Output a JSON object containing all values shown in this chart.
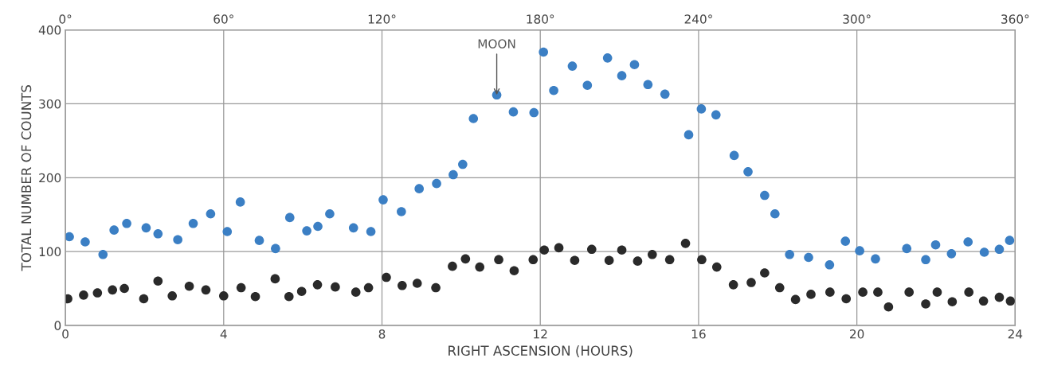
{
  "chart_data": {
    "type": "scatter",
    "xlabel": "RIGHT ASCENSION (HOURS)",
    "ylabel": "TOTAL NUMBER OF COUNTS",
    "xlim": [
      0,
      24
    ],
    "xticks": [
      0,
      4,
      8,
      12,
      16,
      20,
      24
    ],
    "x2lim": [
      0,
      360
    ],
    "x2ticks": [
      {
        "value": 0,
        "label": "0°"
      },
      {
        "value": 60,
        "label": "60°"
      },
      {
        "value": 120,
        "label": "120°"
      },
      {
        "value": 180,
        "label": "180°"
      },
      {
        "value": 240,
        "label": "240°"
      },
      {
        "value": 300,
        "label": "300°"
      },
      {
        "value": 360,
        "label": "360°"
      }
    ],
    "ylim": [
      0,
      400
    ],
    "yticks": [
      0,
      100,
      200,
      300,
      400
    ],
    "grid": true,
    "marker": "circle",
    "annotations": [
      {
        "text": "MOON",
        "x": 10.9,
        "y": 312
      }
    ],
    "series": [
      {
        "color": "#3b7fc4",
        "x": [
          0.1,
          0.5,
          0.95,
          1.23,
          1.55,
          2.04,
          2.34,
          2.84,
          3.23,
          3.67,
          4.09,
          4.42,
          4.9,
          5.31,
          5.67,
          6.1,
          6.38,
          6.68,
          7.28,
          7.72,
          8.03,
          8.49,
          8.94,
          9.38,
          9.8,
          10.04,
          10.31,
          10.9,
          11.32,
          11.84,
          12.08,
          12.34,
          12.81,
          13.19,
          13.7,
          14.06,
          14.38,
          14.72,
          15.15,
          15.75,
          16.07,
          16.44,
          16.9,
          17.25,
          17.67,
          17.93,
          18.3,
          18.78,
          19.31,
          19.71,
          20.07,
          20.47,
          21.26,
          21.74,
          21.99,
          22.39,
          22.81,
          23.22,
          23.6,
          23.86
        ],
        "values": [
          120,
          113,
          96,
          129,
          138,
          132,
          124,
          116,
          138,
          151,
          127,
          167,
          115,
          104,
          146,
          128,
          134,
          151,
          132,
          127,
          170,
          154,
          185,
          192,
          204,
          218,
          280,
          312,
          289,
          288,
          370,
          318,
          351,
          325,
          362,
          338,
          353,
          326,
          313,
          258,
          293,
          285,
          230,
          208,
          176,
          151,
          96,
          92,
          82,
          114,
          101,
          90,
          104,
          89,
          109,
          97,
          113,
          99,
          103,
          115
        ]
      },
      {
        "color": "#2a2a2a",
        "x": [
          0.06,
          0.46,
          0.81,
          1.19,
          1.49,
          1.98,
          2.34,
          2.7,
          3.13,
          3.55,
          4.0,
          4.44,
          4.8,
          5.3,
          5.65,
          5.97,
          6.37,
          6.82,
          7.34,
          7.66,
          8.11,
          8.51,
          8.89,
          9.36,
          9.78,
          10.11,
          10.47,
          10.95,
          11.34,
          11.82,
          12.1,
          12.47,
          12.87,
          13.3,
          13.74,
          14.06,
          14.46,
          14.83,
          15.27,
          15.67,
          16.08,
          16.46,
          16.88,
          17.33,
          17.67,
          18.05,
          18.45,
          18.84,
          19.32,
          19.73,
          20.15,
          20.53,
          20.8,
          21.32,
          21.74,
          22.03,
          22.41,
          22.83,
          23.2,
          23.6,
          23.88
        ],
        "values": [
          36,
          41,
          44,
          48,
          50,
          36,
          60,
          40,
          53,
          48,
          40,
          51,
          39,
          63,
          39,
          46,
          55,
          52,
          45,
          51,
          65,
          54,
          57,
          51,
          80,
          90,
          79,
          89,
          74,
          89,
          102,
          105,
          88,
          103,
          88,
          102,
          87,
          96,
          89,
          111,
          89,
          79,
          55,
          58,
          71,
          51,
          35,
          42,
          45,
          36,
          45,
          45,
          25,
          45,
          29,
          45,
          32,
          45,
          33,
          38,
          33
        ]
      }
    ]
  }
}
